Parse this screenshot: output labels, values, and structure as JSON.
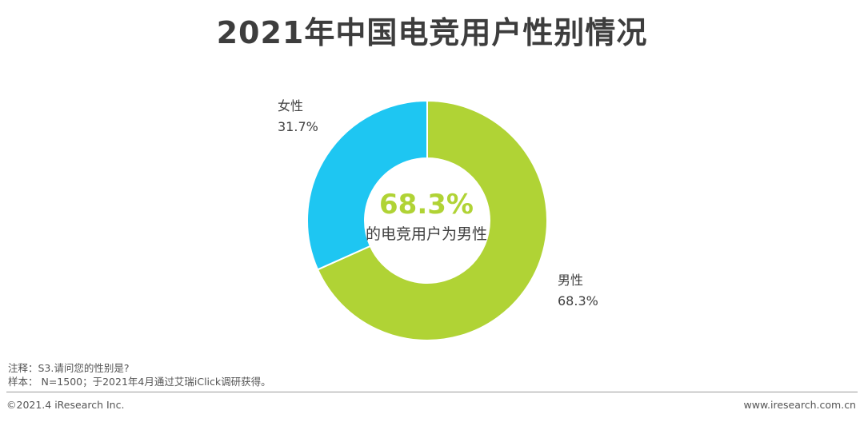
{
  "title": "2021年中国电竞用户性别情况",
  "chart_data": {
    "type": "pie",
    "title": "2021年中国电竞用户性别情况",
    "slices": [
      {
        "name": "男性",
        "value": 68.3,
        "label": "68.3%",
        "color": "#b0d335"
      },
      {
        "name": "女性",
        "value": 31.7,
        "label": "31.7%",
        "color": "#1ec6f2"
      }
    ],
    "center": {
      "value": "68.3%",
      "text": "的电竞用户为男性"
    }
  },
  "notes": {
    "line1": "注释：S3.请问您的性别是?",
    "line2": "样本： N=1500；于2021年4月通过艾瑞iClick调研获得。"
  },
  "footer": {
    "left": "©2021.4 iResearch Inc.",
    "right": "www.iresearch.com.cn"
  }
}
